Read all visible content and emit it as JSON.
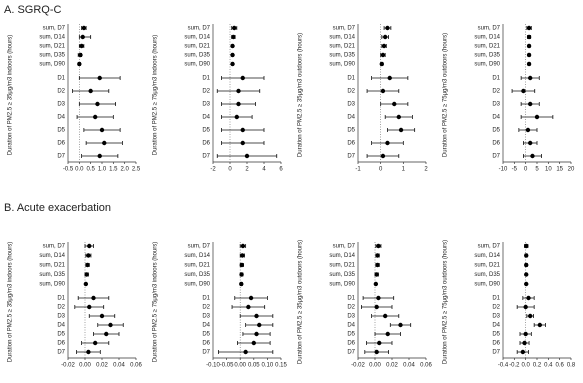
{
  "sections": [
    "A. SGRQ-C",
    "B. Acute exacerbation"
  ],
  "chart_data": [
    {
      "type": "forest",
      "ylabel": "Duration of PM2.5 ≥ 35μg/m3 indoors (hours)",
      "categories": [
        "sum, D7",
        "sum, D14",
        "sum, D21",
        "sum, D35",
        "sum, D90",
        "D1",
        "D2",
        "D3",
        "D4",
        "D5",
        "D6",
        "D7"
      ],
      "values": [
        0.2,
        0.15,
        0.1,
        0.05,
        0.0,
        0.9,
        0.5,
        0.8,
        0.7,
        1.0,
        1.1,
        0.9
      ],
      "lower": [
        0.1,
        0.0,
        0.0,
        -0.05,
        -0.05,
        0.0,
        -0.3,
        0.0,
        -0.1,
        0.2,
        0.3,
        0.1
      ],
      "upper": [
        0.3,
        0.5,
        0.2,
        0.1,
        0.05,
        1.8,
        1.3,
        1.6,
        1.5,
        1.8,
        1.9,
        1.7
      ],
      "xlim": [
        -0.5,
        2.5
      ],
      "xticks": [
        -0.5,
        {
          "value": 0,
          "label": "0.0"
        },
        0.5,
        {
          "value": 1,
          "label": "1.0"
        },
        1.5,
        {
          "value": 2,
          "label": "2.0"
        },
        2.5
      ]
    },
    {
      "type": "forest",
      "ylabel": "Duration of PM2.5 ≥ 75μg/m3 indoors (hours)",
      "categories": [
        "sum, D7",
        "sum, D14",
        "sum, D21",
        "sum, D35",
        "sum, D90",
        "D1",
        "D2",
        "D3",
        "D4",
        "D5",
        "D6",
        "D7"
      ],
      "values": [
        0.5,
        0.4,
        0.3,
        0.3,
        0.3,
        1.5,
        1.0,
        1.0,
        0.8,
        1.5,
        1.5,
        2.0
      ],
      "lower": [
        0.2,
        0.2,
        0.2,
        0.2,
        0.2,
        -1.0,
        -1.5,
        -1.0,
        -1.0,
        -1.0,
        -1.0,
        -1.5
      ],
      "upper": [
        0.8,
        0.6,
        0.4,
        0.4,
        0.4,
        4.0,
        3.5,
        3.0,
        2.6,
        4.0,
        4.0,
        5.5
      ],
      "xlim": [
        -2,
        6
      ],
      "xticks": [
        -2,
        0,
        2,
        4,
        6
      ]
    },
    {
      "type": "forest",
      "ylabel": "Duration of PM2.5 ≥ 35μg/m3 outdoors (hours)",
      "categories": [
        "sum, D7",
        "sum, D14",
        "sum, D21",
        "sum, D35",
        "sum, D90",
        "D1",
        "D2",
        "D3",
        "D4",
        "D5",
        "D6",
        "D7"
      ],
      "values": [
        0.3,
        0.2,
        0.15,
        0.1,
        0.05,
        0.4,
        0.1,
        0.6,
        0.8,
        0.9,
        0.3,
        0.1
      ],
      "lower": [
        0.15,
        0.05,
        0.05,
        0.0,
        0.0,
        -0.4,
        -0.6,
        0.0,
        0.2,
        0.3,
        -0.4,
        -0.6
      ],
      "upper": [
        0.45,
        0.35,
        0.25,
        0.2,
        0.1,
        1.2,
        0.8,
        1.2,
        1.4,
        1.5,
        1.0,
        0.8
      ],
      "xlim": [
        -1,
        2
      ],
      "xticks": [
        -1,
        0,
        1,
        2
      ]
    },
    {
      "type": "forest",
      "ylabel": "Duration of PM2.5 ≥ 75μg/m3 outdoors (hours)",
      "categories": [
        "sum, D7",
        "sum, D14",
        "sum, D21",
        "sum, D35",
        "sum, D90",
        "D1",
        "D2",
        "D3",
        "D4",
        "D5",
        "D6",
        "D7"
      ],
      "values": [
        1.5,
        1.5,
        1.5,
        1.5,
        1.5,
        2,
        -1,
        2,
        5,
        1,
        2,
        3
      ],
      "lower": [
        0.5,
        0.8,
        1,
        1,
        1,
        -2,
        -6,
        -2,
        -2,
        -3,
        -1,
        -1
      ],
      "upper": [
        2.5,
        2.2,
        2,
        2,
        2,
        6,
        4,
        6,
        12,
        5,
        5,
        7
      ],
      "xlim": [
        -10,
        20
      ],
      "xticks": [
        -10,
        -5,
        0,
        5,
        10,
        15,
        20
      ]
    },
    {
      "type": "forest",
      "ylabel": "Duration of PM2.5 ≥ 35μg/m3 indoors (hours)",
      "categories": [
        "sum, D7",
        "sum, D14",
        "sum, D21",
        "sum, D35",
        "sum, D90",
        "D1",
        "D2",
        "D3",
        "D4",
        "D5",
        "D6",
        "D7"
      ],
      "values": [
        0.005,
        0.004,
        0.003,
        0.002,
        0.001,
        0.01,
        0.005,
        0.02,
        0.03,
        0.025,
        0.012,
        0.004
      ],
      "lower": [
        0.0,
        0.001,
        0.001,
        0.0,
        0.0,
        -0.008,
        -0.012,
        0.005,
        0.015,
        0.01,
        -0.004,
        -0.01
      ],
      "upper": [
        0.01,
        0.007,
        0.005,
        0.004,
        0.002,
        0.028,
        0.022,
        0.035,
        0.045,
        0.04,
        0.028,
        0.018
      ],
      "xlim": [
        -0.02,
        0.06
      ],
      "xticks": [
        -0.02,
        {
          "value": 0,
          "label": "0.00"
        },
        0.02,
        0.04,
        0.06
      ]
    },
    {
      "type": "forest",
      "ylabel": "Duration of PM2.5 ≥ 75μg/m3 indoors (hours)",
      "categories": [
        "sum, D7",
        "sum, D14",
        "sum, D21",
        "sum, D35",
        "sum, D90",
        "D1",
        "D2",
        "D3",
        "D4",
        "D5",
        "D6",
        "D7"
      ],
      "values": [
        0.01,
        0.008,
        0.006,
        0.005,
        0.004,
        0.04,
        0.03,
        0.06,
        0.07,
        0.06,
        0.05,
        0.02
      ],
      "lower": [
        0.0,
        0.0,
        0.0,
        0.0,
        0.0,
        -0.02,
        -0.03,
        0.0,
        0.02,
        0.01,
        -0.01,
        -0.08
      ],
      "upper": [
        0.02,
        0.016,
        0.012,
        0.01,
        0.008,
        0.1,
        0.09,
        0.12,
        0.12,
        0.11,
        0.11,
        0.12
      ],
      "xlim": [
        -0.1,
        0.15
      ],
      "xticks": [
        {
          "value": -0.1,
          "label": "-0.10"
        },
        -0.05,
        {
          "value": 0,
          "label": "0.00"
        },
        0.05,
        {
          "value": 0.1,
          "label": "0.10"
        },
        0.15
      ]
    },
    {
      "type": "forest",
      "ylabel": "Duration of PM2.5 ≥ 35μg/m3 outdoors (hours)",
      "categories": [
        "sum, D7",
        "sum, D14",
        "sum, D21",
        "sum, D35",
        "sum, D90",
        "D1",
        "D2",
        "D3",
        "D4",
        "D5",
        "D6",
        "D7"
      ],
      "values": [
        0.004,
        0.003,
        0.003,
        0.002,
        0.001,
        0.004,
        0.002,
        0.012,
        0.03,
        0.015,
        0.005,
        0.002
      ],
      "lower": [
        0.001,
        0.001,
        0.001,
        0.0,
        0.0,
        -0.014,
        -0.016,
        -0.004,
        0.018,
        0.0,
        -0.01,
        -0.012
      ],
      "upper": [
        0.007,
        0.005,
        0.005,
        0.004,
        0.002,
        0.022,
        0.02,
        0.028,
        0.042,
        0.03,
        0.02,
        0.016
      ],
      "xlim": [
        -0.02,
        0.06
      ],
      "xticks": [
        -0.02,
        {
          "value": 0,
          "label": "0.00"
        },
        0.02,
        0.04,
        0.06
      ]
    },
    {
      "type": "forest",
      "ylabel": "Duration of PM2.5 ≥ 75μg/m3 outdoors (hours)",
      "categories": [
        "sum, D7",
        "sum, D14",
        "sum, D21",
        "sum, D35",
        "sum, D90",
        "D1",
        "D2",
        "D3",
        "D4",
        "D5",
        "D6",
        "D7"
      ],
      "values": [
        0.01,
        0.01,
        0.01,
        0.01,
        0.01,
        0.05,
        0.0,
        0.08,
        0.25,
        0.0,
        -0.02,
        -0.05
      ],
      "lower": [
        -0.02,
        -0.01,
        -0.01,
        0.0,
        0.0,
        -0.05,
        -0.15,
        0.02,
        0.15,
        -0.1,
        -0.1,
        -0.15
      ],
      "upper": [
        0.04,
        0.03,
        0.03,
        0.02,
        0.02,
        0.15,
        0.15,
        0.14,
        0.35,
        0.1,
        0.06,
        0.05
      ],
      "xlim": [
        -0.4,
        0.8
      ],
      "xticks": [
        -0.4,
        -0.2,
        {
          "value": 0,
          "label": "0.0"
        },
        0.2,
        0.4,
        0.6,
        0.8
      ]
    }
  ]
}
